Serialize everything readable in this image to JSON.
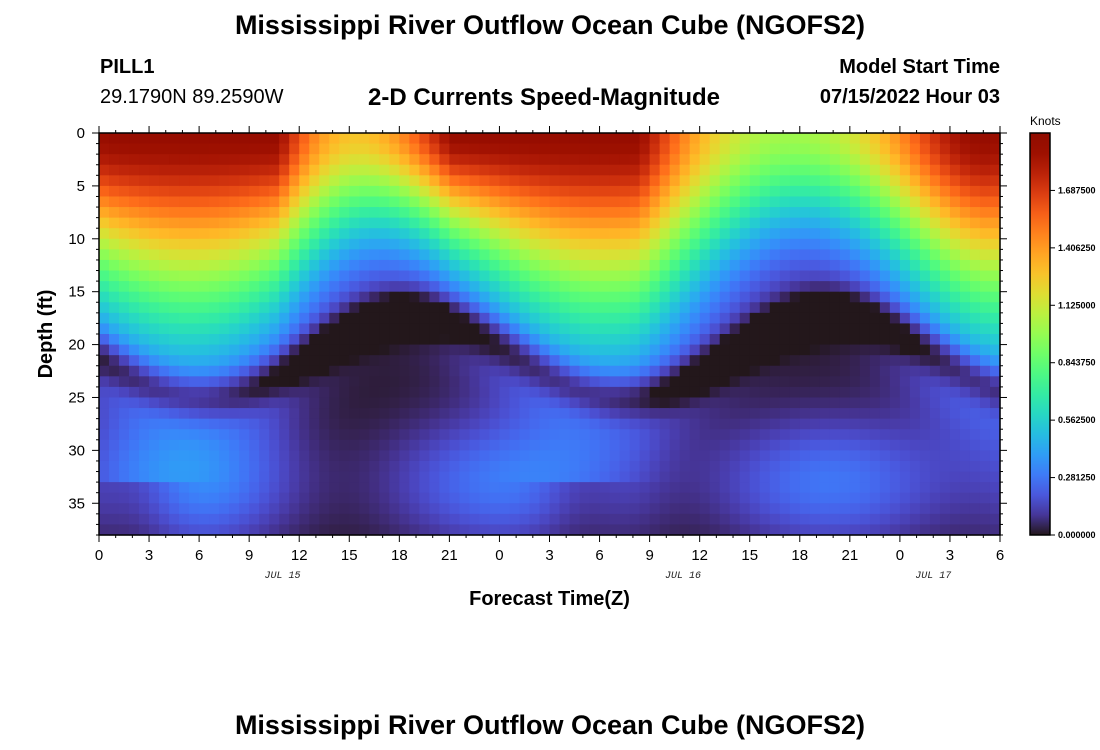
{
  "header": {
    "title": "Mississippi River Outflow Ocean Cube (NGOFS2)",
    "station": "PILL1",
    "coords": "29.1790N  89.2590W",
    "subtitle": "2-D Currents Speed-Magnitude",
    "model_start_label": "Model Start Time",
    "model_start_value": "07/15/2022 Hour 03"
  },
  "footer": {
    "title": "Mississippi River Outflow Ocean Cube (NGOFS2)"
  },
  "chart_data": {
    "type": "heatmap",
    "xlabel": "Forecast Time(Z)",
    "ylabel": "Depth (ft)",
    "x_range_hours": [
      0,
      54
    ],
    "y_range_ft": [
      0,
      38
    ],
    "x_tick_labels": [
      "0",
      "3",
      "6",
      "9",
      "12",
      "15",
      "18",
      "21",
      "0",
      "3",
      "6",
      "9",
      "12",
      "15",
      "18",
      "21",
      "0",
      "3",
      "6"
    ],
    "date_labels": [
      {
        "hour": 11,
        "text": "JUL 15"
      },
      {
        "hour": 35,
        "text": "JUL 16"
      },
      {
        "hour": 50,
        "text": "JUL 17"
      }
    ],
    "y_ticks": [
      0,
      5,
      10,
      15,
      20,
      25,
      30,
      35
    ],
    "colorbar": {
      "unit": "Knots",
      "range": [
        0,
        1.96875
      ],
      "ticks": [
        "0.000000",
        "0.281250",
        "0.562500",
        "0.843750",
        "1.125000",
        "1.406250",
        "1.687500"
      ],
      "tick_values": [
        0,
        0.28125,
        0.5625,
        0.84375,
        1.125,
        1.40625,
        1.6875
      ],
      "colormap": "turbo"
    },
    "surface_speed_maxima_hours": [
      5,
      6,
      23.5,
      30,
      53
    ],
    "speed_profile_note": "Surface speeds ~1.0-1.9 knots oscillating tidally; speed decreases with depth to near 0 at ~20-38 ft"
  },
  "colors": {
    "background": "#ffffff",
    "text": "#000000",
    "frame": "#000000"
  }
}
